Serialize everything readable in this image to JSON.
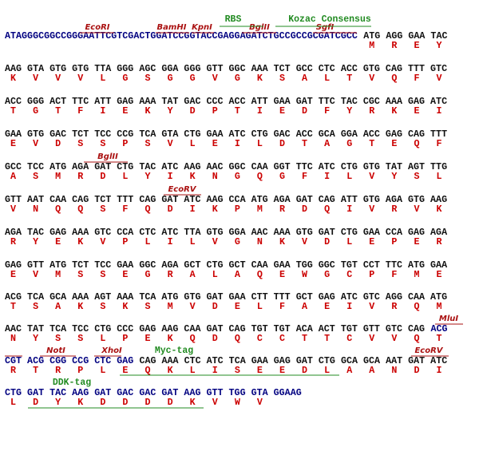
{
  "rows": [
    {
      "segments": [
        {
          "text": "ATAGGGCGGCCGGGAATTCGTCGACTGGATCCGGTACCGAGGAGATCTGCCGCCGCGATCGCC",
          "color": "#000080"
        },
        {
          "text": " ATG AGG GAA TAC",
          "color": "#111111"
        }
      ],
      "aa": [
        "M",
        "R",
        "E",
        "Y"
      ],
      "annotations": [
        {
          "label": "EcoRI",
          "color": "#aa1111"
        },
        {
          "label": "BamHI",
          "color": "#aa1111"
        },
        {
          "label": "KpnI",
          "color": "#aa1111"
        },
        {
          "label": "BglII",
          "color": "#aa1111"
        },
        {
          "label": "SgfI",
          "color": "#aa1111"
        },
        {
          "label": "RBS",
          "color": "#228b22"
        },
        {
          "label": "Kozac Consensus",
          "color": "#228b22"
        }
      ]
    },
    {
      "segments": [
        {
          "text": "AAG GTA GTG GTG TTA GGG AGC GGA GGG GTT GGC AAA TCT GCC CTC ACC GTG CAG TTT GTC",
          "color": "#111111"
        }
      ],
      "aa": [
        "K",
        "V",
        "V",
        "V",
        "L",
        "G",
        "S",
        "G",
        "G",
        "V",
        "G",
        "K",
        "S",
        "A",
        "L",
        "T",
        "V",
        "Q",
        "F",
        "V"
      ],
      "annotations": []
    },
    {
      "segments": [
        {
          "text": "ACC GGG ACT TTC ATT GAG AAA TAT GAC CCC ACC ATT GAA GAT TTC TAC CGC AAA GAG ATC",
          "color": "#111111"
        }
      ],
      "aa": [
        "T",
        "G",
        "T",
        "F",
        "I",
        "E",
        "K",
        "Y",
        "D",
        "P",
        "T",
        "I",
        "E",
        "D",
        "F",
        "Y",
        "R",
        "K",
        "E",
        "I"
      ],
      "annotations": []
    },
    {
      "segments": [
        {
          "text": "GAA GTG GAC TCT TCC CCG TCA GTA CTG GAA ATC CTG GAC ACC GCA GGA ACC GAG CAG TTT",
          "color": "#111111"
        }
      ],
      "aa": [
        "E",
        "V",
        "D",
        "S",
        "S",
        "P",
        "S",
        "V",
        "L",
        "E",
        "I",
        "L",
        "D",
        "T",
        "A",
        "G",
        "T",
        "E",
        "Q",
        "F"
      ],
      "annotations": []
    },
    {
      "segments": [
        {
          "text": "GCC TCC ATG AGA GAT CTG TAC ATC AAG AAC GGC CAA GGT TTC ATC CTG GTG TAT AGT TTG",
          "color": "#111111"
        }
      ],
      "aa": [
        "A",
        "S",
        "M",
        "R",
        "D",
        "L",
        "Y",
        "I",
        "K",
        "N",
        "G",
        "Q",
        "G",
        "F",
        "I",
        "L",
        "V",
        "Y",
        "S",
        "L"
      ],
      "annotations": [
        {
          "label": "BglII",
          "color": "#aa1111"
        }
      ]
    },
    {
      "segments": [
        {
          "text": "GTT AAT CAA CAG TCT TTT CAG GAT ATC AAG CCA ATG AGA GAT CAG ATT GTG AGA GTG AAG",
          "color": "#111111"
        }
      ],
      "aa": [
        "V",
        "N",
        "Q",
        "Q",
        "S",
        "F",
        "Q",
        "D",
        "I",
        "K",
        "P",
        "M",
        "R",
        "D",
        "Q",
        "I",
        "V",
        "R",
        "V",
        "K"
      ],
      "annotations": [
        {
          "label": "EcoRV",
          "color": "#aa1111"
        }
      ]
    },
    {
      "segments": [
        {
          "text": "AGA TAC GAG AAA GTC CCA CTC ATC TTA GTG GGA AAC AAA GTG GAT CTG GAA CCA GAG AGA",
          "color": "#111111"
        }
      ],
      "aa": [
        "R",
        "Y",
        "E",
        "K",
        "V",
        "P",
        "L",
        "I",
        "L",
        "V",
        "G",
        "N",
        "K",
        "V",
        "D",
        "L",
        "E",
        "P",
        "E",
        "R"
      ],
      "annotations": []
    },
    {
      "segments": [
        {
          "text": "GAG GTT ATG TCT TCC GAA GGC AGA GCT CTG GCT CAA GAA TGG GGC TGT CCT TTC ATG GAA",
          "color": "#111111"
        }
      ],
      "aa": [
        "E",
        "V",
        "M",
        "S",
        "S",
        "E",
        "G",
        "R",
        "A",
        "L",
        "A",
        "Q",
        "E",
        "W",
        "G",
        "C",
        "P",
        "F",
        "M",
        "E"
      ],
      "annotations": []
    },
    {
      "segments": [
        {
          "text": "ACG TCA GCA AAA AGT AAA TCA ATG GTG GAT GAA CTT TTT GCT GAG ATC GTC AGG CAA ATG",
          "color": "#111111"
        }
      ],
      "aa": [
        "T",
        "S",
        "A",
        "K",
        "S",
        "K",
        "S",
        "M",
        "V",
        "D",
        "E",
        "L",
        "F",
        "A",
        "E",
        "I",
        "V",
        "R",
        "Q",
        "M"
      ],
      "annotations": []
    },
    {
      "segments": [
        {
          "text": "AAC TAT TCA TCC CTG CCC GAG AAG CAA GAT CAG TGT TGT ACA ACT TGT GTT GTC CAG ",
          "color": "#111111"
        },
        {
          "text": "ACG",
          "color": "#000080"
        }
      ],
      "aa": [
        "N",
        "Y",
        "S",
        "S",
        "L",
        "P",
        "E",
        "K",
        "Q",
        "D",
        "Q",
        "C",
        "C",
        "T",
        "T",
        "C",
        "V",
        "V",
        "Q",
        "T"
      ],
      "annotations": [
        {
          "label": "MluI",
          "color": "#aa1111"
        }
      ]
    },
    {
      "segments": [
        {
          "text": "CGT ACG CGG CCG CTC GAG",
          "color": "#000080"
        },
        {
          "text": " CAG AAA CTC ATC TCA GAA GAG GAT CTG GCA GCA AAT GAT ATC",
          "color": "#111111"
        }
      ],
      "aa": [
        "R",
        "T",
        "R",
        "P",
        "L",
        "E",
        "Q",
        "K",
        "L",
        "I",
        "S",
        "E",
        "E",
        "D",
        "L",
        "A",
        "A",
        "N",
        "D",
        "I"
      ],
      "annotations": [
        {
          "label": "NotI",
          "color": "#aa1111"
        },
        {
          "label": "XhoI",
          "color": "#aa1111"
        },
        {
          "label": "Myc-tag",
          "color": "#228b22"
        },
        {
          "label": "EcoRV",
          "color": "#aa1111"
        }
      ]
    },
    {
      "segments": [
        {
          "text": "CTG GAT TAC AAG GAT GAC GAC GAT AAG GTT TGG GTA GGAAG",
          "color": "#000080"
        }
      ],
      "aa": [
        "L",
        "D",
        "Y",
        "K",
        "D",
        "D",
        "D",
        "D",
        "K",
        "V",
        "W",
        "V"
      ],
      "annotations": [
        {
          "label": "DDK-tag",
          "color": "#228b22"
        }
      ]
    }
  ]
}
